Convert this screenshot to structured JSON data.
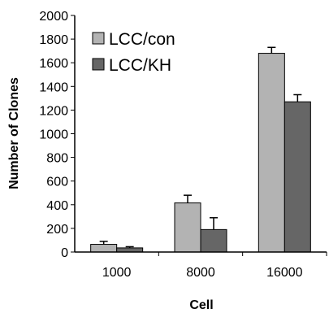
{
  "chart_data": {
    "type": "bar",
    "title": "",
    "xlabel": "Cell",
    "ylabel": "Number of Clones",
    "categories": [
      "1000",
      "8000",
      "16000"
    ],
    "ylim": [
      0,
      2000
    ],
    "yticks": [
      0,
      200,
      400,
      600,
      800,
      1000,
      1200,
      1400,
      1600,
      1800,
      2000
    ],
    "grid": false,
    "legend_position": "top-left",
    "series": [
      {
        "name": "LCC/con",
        "color": "#b3b3b3",
        "values": [
          65,
          415,
          1680
        ],
        "errors": [
          25,
          65,
          50
        ]
      },
      {
        "name": "LCC/KH",
        "color": "#666666",
        "values": [
          35,
          190,
          1270
        ],
        "errors": [
          10,
          100,
          60
        ]
      }
    ]
  }
}
